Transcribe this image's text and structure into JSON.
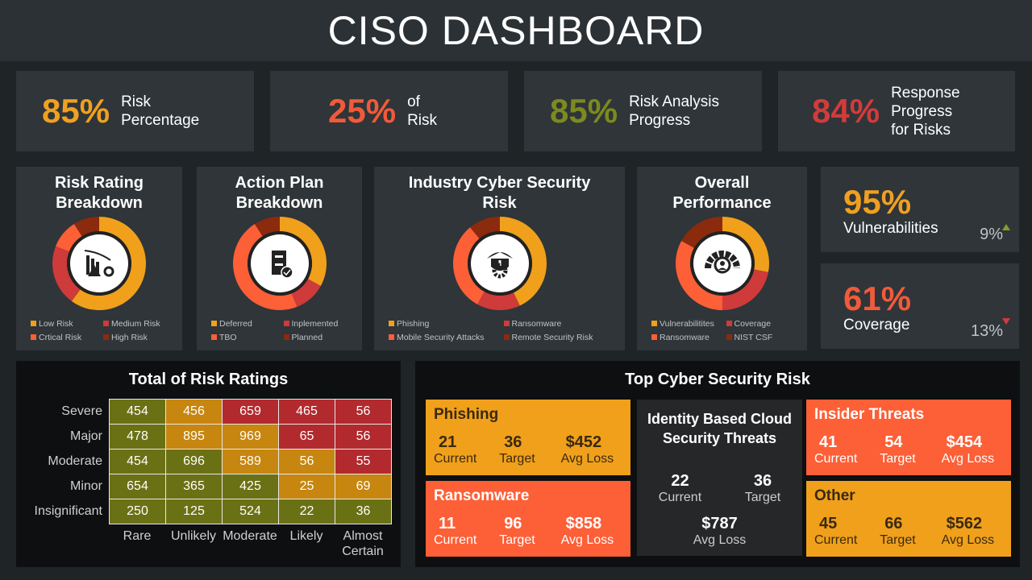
{
  "title": "CISO DASHBOARD",
  "kpis": [
    {
      "value": "85%",
      "label": "Risk Percentage",
      "color": "#f0a020"
    },
    {
      "value": "25%",
      "label": "of Risk",
      "color": "#f15a3a"
    },
    {
      "value": "85%",
      "label": "Risk Analysis Progress",
      "color": "#7c8a1e"
    },
    {
      "value": "84%",
      "label": "Response Progress for Risks",
      "color": "#d23b3b"
    }
  ],
  "donuts": [
    {
      "title": "Risk Rating Breakdown",
      "icon": "declining-chart-warning-icon",
      "segments": [
        {
          "label": "Low Risk",
          "value": 60,
          "color": "#f0a01b"
        },
        {
          "label": "Medium  Risk",
          "value": 21,
          "color": "#cf3a3a"
        },
        {
          "label": "Crtical Risk",
          "value": 10,
          "color": "#fd5f37"
        },
        {
          "label": "High Risk",
          "value": 9,
          "color": "#8b2a0c"
        }
      ]
    },
    {
      "title": "Action Plan Breakdown",
      "icon": "document-check-icon",
      "segments": [
        {
          "label": "Deferred",
          "value": 33,
          "color": "#f0a01b"
        },
        {
          "label": "Inplemented",
          "value": 11,
          "color": "#cf3a3a"
        },
        {
          "label": "TBO",
          "value": 47,
          "color": "#fd5f37"
        },
        {
          "label": "Planned",
          "value": 9,
          "color": "#8b2a0c"
        }
      ]
    },
    {
      "title": "Industry Cyber Security Risk",
      "icon": "shield-gear-warning-icon",
      "segments": [
        {
          "label": "Phishing",
          "value": 43,
          "color": "#f0a01b"
        },
        {
          "label": "Ransomware",
          "value": 15,
          "color": "#cf3a3a"
        },
        {
          "label": "Mobile Security Attacks",
          "value": 31,
          "color": "#fd5f37"
        },
        {
          "label": "Remote Security Risk",
          "value": 11,
          "color": "#8b2a0c"
        }
      ]
    },
    {
      "title": "Overall Performance",
      "icon": "gauge-gear-user-icon",
      "segments": [
        {
          "label": "Vulnerabilitites",
          "value": 28,
          "color": "#f0a01b"
        },
        {
          "label": "Coverage",
          "value": 22,
          "color": "#cf3a3a"
        },
        {
          "label": "Ransomware",
          "value": 33,
          "color": "#fd5f37"
        },
        {
          "label": "NIST CSF",
          "value": 17,
          "color": "#8b2a0c"
        }
      ]
    }
  ],
  "side": [
    {
      "value": "95%",
      "label": "Vulnerabilities",
      "change": "9%",
      "trend": "up",
      "color": "#f0a020",
      "trend_color": "#8a9a2a"
    },
    {
      "value": "61%",
      "label": "Coverage",
      "change": "13%",
      "trend": "down",
      "color": "#f15a3a",
      "trend_color": "#d23b3b"
    }
  ],
  "heatmap": {
    "title": "Total of Risk Ratings",
    "rows": [
      "Severe",
      "Major",
      "Moderate",
      "Minor",
      "Insignificant"
    ],
    "cols": [
      "Rare",
      "Unlikely",
      "Moderate",
      "Likely",
      "Almost Certain"
    ],
    "values": [
      [
        454,
        456,
        659,
        465,
        56
      ],
      [
        478,
        895,
        969,
        65,
        56
      ],
      [
        454,
        696,
        589,
        56,
        55
      ],
      [
        654,
        365,
        425,
        25,
        69
      ],
      [
        250,
        125,
        524,
        22,
        36
      ]
    ],
    "levels": [
      [
        "g",
        "a",
        "r",
        "r",
        "r"
      ],
      [
        "g",
        "a",
        "a",
        "r",
        "r"
      ],
      [
        "g",
        "g",
        "a",
        "a",
        "r"
      ],
      [
        "g",
        "g",
        "g",
        "a",
        "a"
      ],
      [
        "g",
        "g",
        "g",
        "g",
        "g"
      ]
    ],
    "colors": {
      "g": "#6a7115",
      "a": "#c7860f",
      "r": "#b22a2e"
    }
  },
  "top_risk": {
    "title": "Top Cyber Security Risk",
    "cards": [
      {
        "name": "Phishing",
        "current": "21",
        "target": "36",
        "loss": "$452",
        "bg": "#f0a01b",
        "fg": "#3a2a10"
      },
      {
        "name": "Ransomware",
        "current": "11",
        "target": "96",
        "loss": "$858",
        "bg": "#fd5f37",
        "fg": "#ffffff"
      },
      {
        "name": "Insider Threats",
        "current": "41",
        "target": "54",
        "loss": "$454",
        "bg": "#fd5f37",
        "fg": "#ffffff"
      },
      {
        "name": "Other",
        "current": "45",
        "target": "66",
        "loss": "$562",
        "bg": "#f0a01b",
        "fg": "#3a2a10"
      }
    ],
    "center": {
      "name": "Identity Based Cloud Security Threats",
      "current": "22",
      "target": "36",
      "loss": "$787"
    },
    "labels": {
      "current": "Current",
      "target": "Target",
      "loss": "Avg Loss"
    }
  }
}
